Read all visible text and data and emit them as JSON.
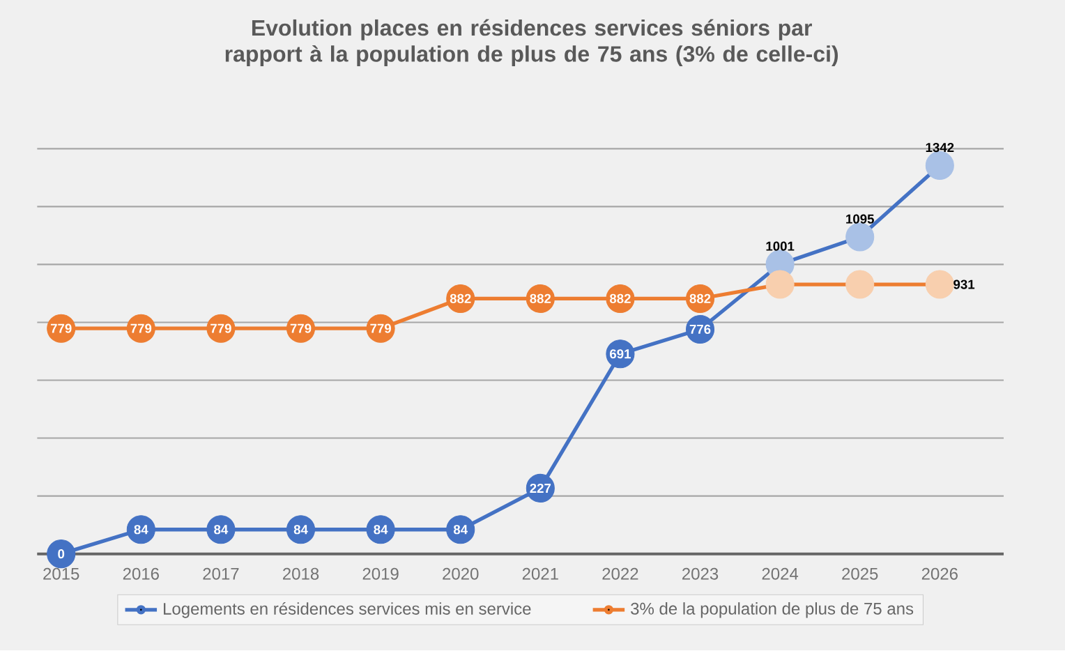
{
  "chart_data": {
    "type": "line",
    "title": "Evolution places en résidences services séniors par rapport à la population de plus de 75 ans (3% de celle-ci)",
    "categories": [
      "2015",
      "2016",
      "2017",
      "2018",
      "2019",
      "2020",
      "2021",
      "2022",
      "2023",
      "2024",
      "2025",
      "2026"
    ],
    "series": [
      {
        "name": "Logements en résidences services mis en service",
        "color": "#4472c4",
        "colors": [
          "#4472c4",
          "#4472c4",
          "#4472c4",
          "#4472c4",
          "#4472c4",
          "#4472c4",
          "#4472c4",
          "#4472c4",
          "#4472c4",
          "#a9c1e6",
          "#a9c1e6",
          "#a9c1e6"
        ],
        "values": [
          0,
          84,
          84,
          84,
          84,
          84,
          227,
          691,
          776,
          1001,
          1095,
          1342
        ],
        "value_labels": [
          "0",
          "84",
          "84",
          "84",
          "84",
          "84",
          "227",
          "691",
          "776",
          "1001",
          "1095",
          "1342"
        ]
      },
      {
        "name": "3% de la population de plus de 75 ans",
        "color": "#ed7d31",
        "colors": [
          "#ed7d31",
          "#ed7d31",
          "#ed7d31",
          "#ed7d31",
          "#ed7d31",
          "#ed7d31",
          "#ed7d31",
          "#ed7d31",
          "#ed7d31",
          "#f8cfae",
          "#f8cfae",
          "#f8cfae"
        ],
        "values": [
          779,
          779,
          779,
          779,
          779,
          882,
          882,
          882,
          882,
          931,
          931,
          931
        ],
        "value_labels": [
          "779",
          "779",
          "779",
          "779",
          "779",
          "882",
          "882",
          "882",
          "882",
          null,
          null,
          "931"
        ]
      }
    ],
    "yticks": [
      {
        "value": 0,
        "label": null
      },
      {
        "value": 200,
        "label": null
      },
      {
        "value": 400,
        "label": null
      },
      {
        "value": 600,
        "label": null
      },
      {
        "value": 800,
        "label": null
      },
      {
        "value": 1000,
        "label": null
      },
      {
        "value": 1200,
        "label": null
      },
      {
        "value": 1400,
        "label": null
      }
    ],
    "tick_labels": "x",
    "grid": "y",
    "legend": "bottom",
    "marker": "circle",
    "line_style": "solid"
  }
}
